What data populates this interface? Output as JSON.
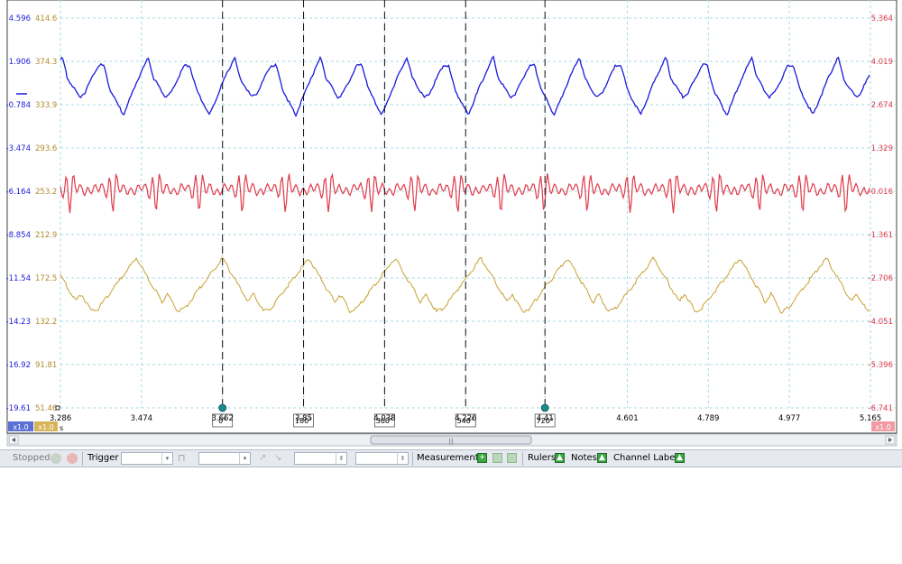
{
  "timebase": {
    "unit": "s",
    "ticks": [
      "3.286",
      "3.474",
      "3.662",
      "3.85",
      "4.038",
      "4.226",
      "4.41",
      "4.601",
      "4.789",
      "4.977",
      "5.165"
    ]
  },
  "axes": {
    "channelA_ticks": [
      "4.596",
      "1.906",
      "-0.784",
      "-3.474",
      "-6.164",
      "-8.854",
      "-11.54",
      "-14.23",
      "-16.92",
      "-19.61"
    ],
    "channelB_ticks": [
      "414.6",
      "374.3",
      "333.9",
      "293.6",
      "253.2",
      "212.9",
      "172.5",
      "132.2",
      "91.81",
      "51.46"
    ],
    "channelC_ticks": [
      "5.364",
      "4.019",
      "2.674",
      "1.329",
      "-0.016",
      "-1.361",
      "-2.706",
      "-4.051",
      "-5.396",
      "-6.741"
    ]
  },
  "colors": {
    "channelA": "#1a1adb",
    "channelB": "#c8a030",
    "channelC": "#e03a4a",
    "grid": "#a8dbe6"
  },
  "rulers": [
    {
      "label": "0°",
      "t": 3.662
    },
    {
      "label": "180°",
      "t": 3.85
    },
    {
      "label": "360°",
      "t": 4.038
    },
    {
      "label": "540°",
      "t": 4.226
    },
    {
      "label": "720°",
      "t": 4.41
    }
  ],
  "badges": {
    "a": "x1.0",
    "b": "x1.0",
    "c": "x1.0"
  },
  "scrollbar": {
    "thumb_label": "||"
  },
  "toolbar": {
    "status": "Stopped",
    "trigger": "Trigger",
    "measurements": "Measurements",
    "rulers": "Rulers",
    "notes": "Notes",
    "channel_labels": "Channel Labels"
  }
}
